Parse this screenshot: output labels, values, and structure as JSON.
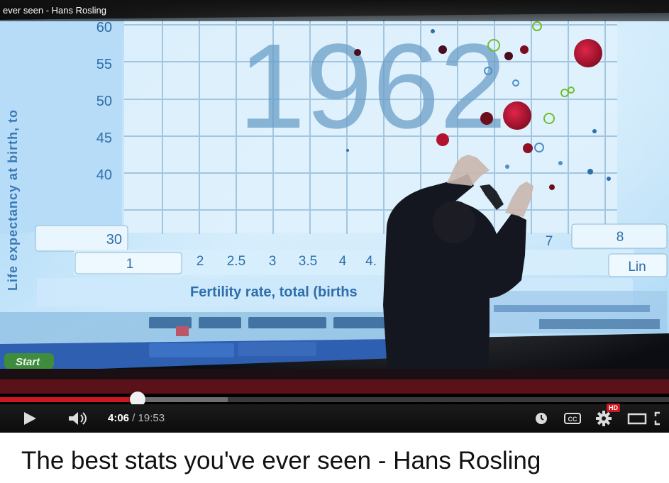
{
  "window_title": "ever seen - Hans Rosling",
  "video_title": "The best stats you've ever seen - Hans Rosling",
  "player": {
    "current_time": "4:06",
    "separator": " / ",
    "duration": "19:53",
    "progress_played": 0.206,
    "progress_loaded": 0.34,
    "hd_badge": "HD",
    "colors": {
      "played": "#cc181e",
      "loaded": "#6e6e6e",
      "track": "#3a3a3a"
    },
    "icons": {
      "play": "play-icon",
      "volume": "volume-icon",
      "watch_later": "clock-icon",
      "captions": "cc-icon",
      "settings": "gear-icon",
      "theater": "theater-mode-icon",
      "fullscreen": "fullscreen-icon"
    }
  },
  "slide": {
    "year": "1962",
    "ylabel": "Life expectancy at birth, to",
    "xlabel": "Fertility rate, total (births",
    "yticks": [
      "60",
      "55",
      "50",
      "45",
      "40",
      "30"
    ],
    "xticks": [
      "1",
      "2",
      "2.5",
      "3",
      "3.5",
      "4",
      "4.",
      "7",
      "8"
    ],
    "scale_button": "Lin",
    "taskbar_start": "Start"
  }
}
